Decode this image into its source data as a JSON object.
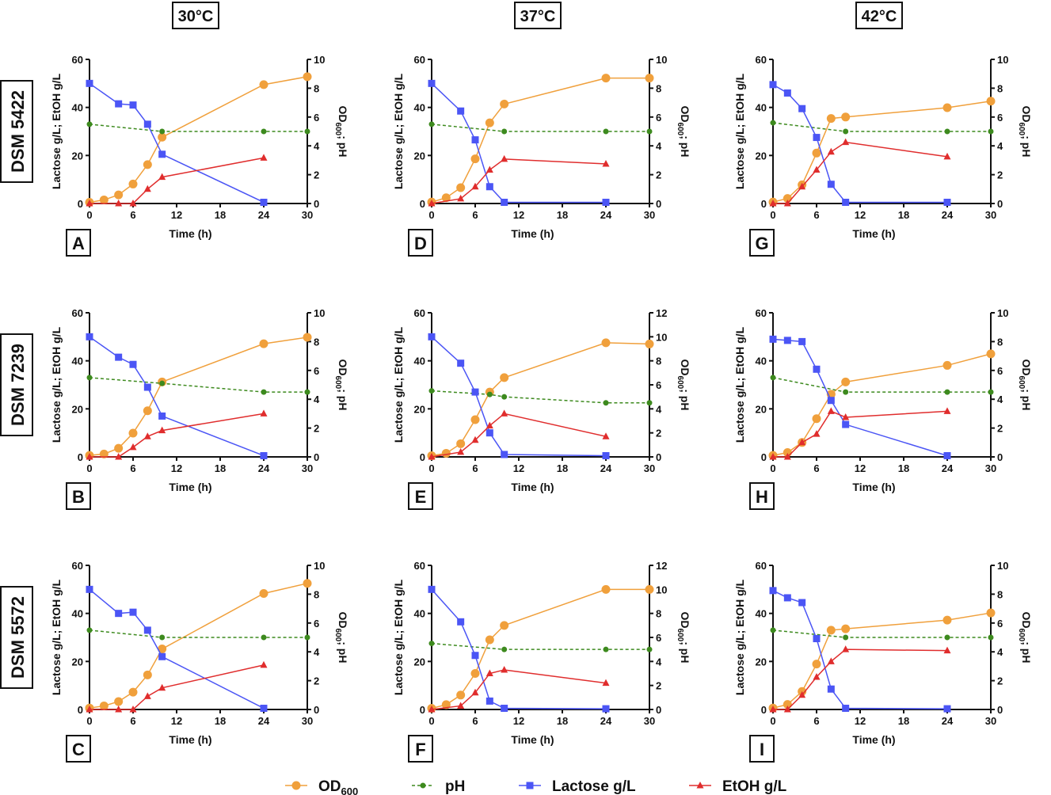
{
  "columns": [
    "30°C",
    "37°C",
    "42°C"
  ],
  "rows": [
    "DSM 5422",
    "DSM 7239",
    "DSM 5572"
  ],
  "legend": [
    {
      "key": "od",
      "label": "OD",
      "sub": "600",
      "color": "#f0a03c",
      "marker": "circle"
    },
    {
      "key": "ph",
      "label": "pH",
      "sub": "",
      "color": "#3d8a1e",
      "marker": "dot"
    },
    {
      "key": "lactose",
      "label": "Lactose g/L",
      "sub": "",
      "color": "#4b55f5",
      "marker": "square"
    },
    {
      "key": "etoh",
      "label": "EtOH g/L",
      "sub": "",
      "color": "#e02d2d",
      "marker": "triangle"
    }
  ],
  "axis_text": {
    "xlabel": "Time (h)",
    "ylabel_left": "Lactose g/L; EtOH g/L",
    "ylabel_right": "OD",
    "ylabel_right_sub": "600",
    "ylabel_right_tail": "; pH"
  },
  "chart_data": [
    {
      "type": "line",
      "panel": "A",
      "strain": "DSM 5422",
      "temperature": "30°C",
      "xlim": [
        0,
        30
      ],
      "xticks": [
        0,
        6,
        12,
        18,
        24,
        30
      ],
      "ylim_left": [
        0,
        60
      ],
      "ylim_right": [
        0,
        10
      ],
      "series": {
        "od": [
          [
            0,
            0.08
          ],
          [
            2,
            0.25
          ],
          [
            4,
            0.6
          ],
          [
            6,
            1.35
          ],
          [
            8,
            2.7
          ],
          [
            10,
            4.6
          ],
          [
            24,
            8.25
          ],
          [
            30,
            8.8
          ]
        ],
        "ph": [
          [
            0,
            5.5
          ],
          [
            10,
            5.0
          ],
          [
            24,
            5.0
          ],
          [
            30,
            5.0
          ]
        ],
        "lactose": [
          [
            0,
            50
          ],
          [
            4,
            41.5
          ],
          [
            6,
            41
          ],
          [
            8,
            33
          ],
          [
            10,
            20.5
          ],
          [
            24,
            0.5
          ]
        ],
        "etoh": [
          [
            0,
            0
          ],
          [
            4,
            0
          ],
          [
            6,
            0
          ],
          [
            8,
            6
          ],
          [
            10,
            11
          ],
          [
            24,
            19
          ]
        ]
      }
    },
    {
      "type": "line",
      "panel": "D",
      "strain": "DSM 5422",
      "temperature": "37°C",
      "xlim": [
        0,
        30
      ],
      "xticks": [
        0,
        6,
        12,
        18,
        24,
        30
      ],
      "ylim_left": [
        0,
        60
      ],
      "ylim_right": [
        0,
        10
      ],
      "series": {
        "od": [
          [
            0,
            0.1
          ],
          [
            2,
            0.4
          ],
          [
            4,
            1.1
          ],
          [
            6,
            3.1
          ],
          [
            8,
            5.6
          ],
          [
            10,
            6.9
          ],
          [
            24,
            8.7
          ],
          [
            30,
            8.7
          ]
        ],
        "ph": [
          [
            0,
            5.5
          ],
          [
            10,
            5.0
          ],
          [
            24,
            5.0
          ],
          [
            30,
            5.0
          ]
        ],
        "lactose": [
          [
            0,
            50
          ],
          [
            4,
            38.5
          ],
          [
            6,
            26.5
          ],
          [
            8,
            7
          ],
          [
            10,
            0.5
          ],
          [
            24,
            0.5
          ]
        ],
        "etoh": [
          [
            0,
            0
          ],
          [
            4,
            2
          ],
          [
            6,
            7
          ],
          [
            8,
            14
          ],
          [
            10,
            18.5
          ],
          [
            24,
            16.5
          ]
        ]
      }
    },
    {
      "type": "line",
      "panel": "G",
      "strain": "DSM 5422",
      "temperature": "42°C",
      "xlim": [
        0,
        30
      ],
      "xticks": [
        0,
        6,
        12,
        18,
        24,
        30
      ],
      "ylim_left": [
        0,
        60
      ],
      "ylim_right": [
        0,
        10
      ],
      "series": {
        "od": [
          [
            0,
            0.1
          ],
          [
            2,
            0.35
          ],
          [
            4,
            1.3
          ],
          [
            6,
            3.5
          ],
          [
            8,
            5.9
          ],
          [
            10,
            6.0
          ],
          [
            24,
            6.65
          ],
          [
            30,
            7.1
          ]
        ],
        "ph": [
          [
            0,
            5.6
          ],
          [
            10,
            5.0
          ],
          [
            24,
            5.0
          ],
          [
            30,
            5.0
          ]
        ],
        "lactose": [
          [
            0,
            49.5
          ],
          [
            2,
            46
          ],
          [
            4,
            39.5
          ],
          [
            6,
            27.5
          ],
          [
            8,
            8
          ],
          [
            10,
            0.5
          ],
          [
            24,
            0.5
          ]
        ],
        "etoh": [
          [
            0,
            0
          ],
          [
            2,
            0
          ],
          [
            4,
            7
          ],
          [
            6,
            14
          ],
          [
            8,
            21.5
          ],
          [
            10,
            25.5
          ],
          [
            24,
            19.5
          ]
        ]
      }
    },
    {
      "type": "line",
      "panel": "B",
      "strain": "DSM 7239",
      "temperature": "30°C",
      "xlim": [
        0,
        30
      ],
      "xticks": [
        0,
        6,
        12,
        18,
        24,
        30
      ],
      "ylim_left": [
        0,
        60
      ],
      "ylim_right": [
        0,
        10
      ],
      "series": {
        "od": [
          [
            0,
            0.1
          ],
          [
            2,
            0.2
          ],
          [
            4,
            0.6
          ],
          [
            6,
            1.65
          ],
          [
            8,
            3.2
          ],
          [
            10,
            5.2
          ],
          [
            24,
            7.85
          ],
          [
            30,
            8.3
          ]
        ],
        "ph": [
          [
            0,
            5.5
          ],
          [
            10,
            5.1
          ],
          [
            24,
            4.5
          ],
          [
            30,
            4.5
          ]
        ],
        "lactose": [
          [
            0,
            50
          ],
          [
            4,
            41.5
          ],
          [
            6,
            38.5
          ],
          [
            8,
            29
          ],
          [
            10,
            17
          ],
          [
            24,
            0.5
          ]
        ],
        "etoh": [
          [
            0,
            0
          ],
          [
            4,
            0
          ],
          [
            6,
            4
          ],
          [
            8,
            8.5
          ],
          [
            10,
            11
          ],
          [
            24,
            18
          ]
        ]
      }
    },
    {
      "type": "line",
      "panel": "E",
      "strain": "DSM 7239",
      "temperature": "37°C",
      "xlim": [
        0,
        30
      ],
      "xticks": [
        0,
        6,
        12,
        18,
        24,
        30
      ],
      "ylim_left": [
        0,
        60
      ],
      "ylim_right": [
        0,
        12
      ],
      "series": {
        "od": [
          [
            0,
            0.1
          ],
          [
            2,
            0.3
          ],
          [
            4,
            1.1
          ],
          [
            6,
            3.1
          ],
          [
            8,
            5.4
          ],
          [
            10,
            6.6
          ],
          [
            24,
            9.5
          ],
          [
            30,
            9.4
          ]
        ],
        "ph": [
          [
            0,
            5.5
          ],
          [
            8,
            5.2
          ],
          [
            10,
            5.0
          ],
          [
            24,
            4.5
          ],
          [
            30,
            4.5
          ]
        ],
        "lactose": [
          [
            0,
            50
          ],
          [
            4,
            39
          ],
          [
            6,
            27
          ],
          [
            8,
            10
          ],
          [
            10,
            1
          ],
          [
            24,
            0.5
          ]
        ],
        "etoh": [
          [
            0,
            0
          ],
          [
            4,
            2
          ],
          [
            6,
            7
          ],
          [
            8,
            13
          ],
          [
            10,
            18
          ],
          [
            24,
            8.5
          ]
        ]
      }
    },
    {
      "type": "line",
      "panel": "H",
      "strain": "DSM 7239",
      "temperature": "42°C",
      "xlim": [
        0,
        30
      ],
      "xticks": [
        0,
        6,
        12,
        18,
        24,
        30
      ],
      "ylim_left": [
        0,
        60
      ],
      "ylim_right": [
        0,
        10
      ],
      "series": {
        "od": [
          [
            0,
            0.1
          ],
          [
            2,
            0.3
          ],
          [
            4,
            1.0
          ],
          [
            6,
            2.65
          ],
          [
            8,
            4.35
          ],
          [
            10,
            5.2
          ],
          [
            24,
            6.35
          ],
          [
            30,
            7.15
          ]
        ],
        "ph": [
          [
            0,
            5.5
          ],
          [
            10,
            4.5
          ],
          [
            24,
            4.5
          ],
          [
            30,
            4.5
          ]
        ],
        "lactose": [
          [
            0,
            49
          ],
          [
            2,
            48.5
          ],
          [
            4,
            48
          ],
          [
            6,
            36.5
          ],
          [
            8,
            23.5
          ],
          [
            10,
            13.5
          ],
          [
            24,
            0.5
          ]
        ],
        "etoh": [
          [
            0,
            0
          ],
          [
            2,
            0
          ],
          [
            4,
            6
          ],
          [
            6,
            9.5
          ],
          [
            8,
            19
          ],
          [
            10,
            16.5
          ],
          [
            24,
            19
          ]
        ]
      }
    },
    {
      "type": "line",
      "panel": "C",
      "strain": "DSM 5572",
      "temperature": "30°C",
      "xlim": [
        0,
        30
      ],
      "xticks": [
        0,
        6,
        12,
        18,
        24,
        30
      ],
      "ylim_left": [
        0,
        60
      ],
      "ylim_right": [
        0,
        10
      ],
      "series": {
        "od": [
          [
            0,
            0.1
          ],
          [
            2,
            0.25
          ],
          [
            4,
            0.55
          ],
          [
            6,
            1.2
          ],
          [
            8,
            2.4
          ],
          [
            10,
            4.2
          ],
          [
            24,
            8.05
          ],
          [
            30,
            8.75
          ]
        ],
        "ph": [
          [
            0,
            5.5
          ],
          [
            10,
            5.0
          ],
          [
            24,
            5.0
          ],
          [
            30,
            5.0
          ]
        ],
        "lactose": [
          [
            0,
            50
          ],
          [
            4,
            40
          ],
          [
            6,
            40.5
          ],
          [
            8,
            33
          ],
          [
            10,
            22
          ],
          [
            24,
            0.5
          ]
        ],
        "etoh": [
          [
            0,
            0
          ],
          [
            4,
            0
          ],
          [
            6,
            0
          ],
          [
            8,
            5.5
          ],
          [
            10,
            9
          ],
          [
            24,
            18.5
          ]
        ]
      }
    },
    {
      "type": "line",
      "panel": "F",
      "strain": "DSM 5572",
      "temperature": "37°C",
      "xlim": [
        0,
        30
      ],
      "xticks": [
        0,
        6,
        12,
        18,
        24,
        30
      ],
      "ylim_left": [
        0,
        60
      ],
      "ylim_right": [
        0,
        12
      ],
      "series": {
        "od": [
          [
            0,
            0.1
          ],
          [
            2,
            0.4
          ],
          [
            4,
            1.2
          ],
          [
            6,
            3.0
          ],
          [
            8,
            5.8
          ],
          [
            10,
            7.0
          ],
          [
            24,
            10.0
          ],
          [
            30,
            10.0
          ]
        ],
        "ph": [
          [
            0,
            5.5
          ],
          [
            10,
            5.0
          ],
          [
            24,
            5.0
          ],
          [
            30,
            5.0
          ]
        ],
        "lactose": [
          [
            0,
            50
          ],
          [
            4,
            36.5
          ],
          [
            6,
            22.5
          ],
          [
            8,
            3.5
          ],
          [
            10,
            0.5
          ],
          [
            24,
            0.3
          ]
        ],
        "etoh": [
          [
            0,
            0
          ],
          [
            4,
            1.5
          ],
          [
            6,
            7
          ],
          [
            8,
            15
          ],
          [
            10,
            16.5
          ],
          [
            24,
            11
          ]
        ]
      }
    },
    {
      "type": "line",
      "panel": "I",
      "strain": "DSM 5572",
      "temperature": "42°C",
      "xlim": [
        0,
        30
      ],
      "xticks": [
        0,
        6,
        12,
        18,
        24,
        30
      ],
      "ylim_left": [
        0,
        60
      ],
      "ylim_right": [
        0,
        10
      ],
      "series": {
        "od": [
          [
            0,
            0.1
          ],
          [
            2,
            0.35
          ],
          [
            4,
            1.25
          ],
          [
            6,
            3.15
          ],
          [
            8,
            5.5
          ],
          [
            10,
            5.6
          ],
          [
            24,
            6.2
          ],
          [
            30,
            6.7
          ]
        ],
        "ph": [
          [
            0,
            5.5
          ],
          [
            10,
            5.0
          ],
          [
            24,
            5.0
          ],
          [
            30,
            5.0
          ]
        ],
        "lactose": [
          [
            0,
            49.5
          ],
          [
            2,
            46.5
          ],
          [
            4,
            44.5
          ],
          [
            6,
            29.5
          ],
          [
            8,
            8.5
          ],
          [
            10,
            0.5
          ],
          [
            24,
            0.3
          ]
        ],
        "etoh": [
          [
            0,
            0
          ],
          [
            2,
            0
          ],
          [
            4,
            6
          ],
          [
            6,
            13.5
          ],
          [
            8,
            20
          ],
          [
            10,
            25
          ],
          [
            24,
            24.5
          ]
        ]
      }
    }
  ]
}
